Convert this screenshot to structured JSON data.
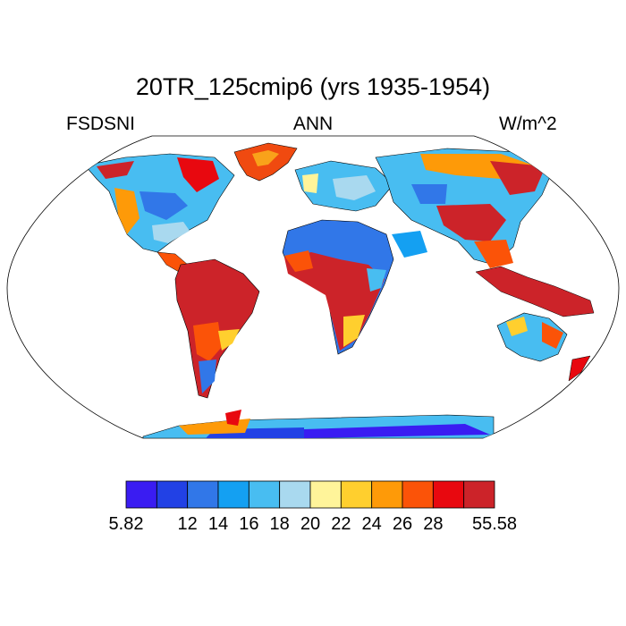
{
  "title": "20TR_125cmip6 (yrs 1935-1954)",
  "left_string": "FSDSNI",
  "center_string": "ANN",
  "right_string": "W/m^2",
  "map": {
    "projection": "Robinson",
    "variable": "FSDSNI",
    "season": "ANN",
    "units": "W/m^2",
    "land_only": true
  },
  "colorbar": {
    "colors": [
      "#3a1cf2",
      "#2241e5",
      "#3177e8",
      "#14a0f2",
      "#48bdf1",
      "#a9d9ef",
      "#fff49a",
      "#ffcf2e",
      "#fe9a08",
      "#fb5308",
      "#e8080f",
      "#cc2329"
    ],
    "labels": [
      {
        "text": "5.82",
        "box": 0
      },
      {
        "text": "12",
        "box": 2
      },
      {
        "text": "14",
        "box": 3
      },
      {
        "text": "16",
        "box": 4
      },
      {
        "text": "18",
        "box": 5
      },
      {
        "text": "20",
        "box": 6
      },
      {
        "text": "22",
        "box": 7
      },
      {
        "text": "24",
        "box": 8
      },
      {
        "text": "26",
        "box": 9
      },
      {
        "text": "28",
        "box": 10
      },
      {
        "text": "55.58",
        "box": 12
      }
    ]
  }
}
